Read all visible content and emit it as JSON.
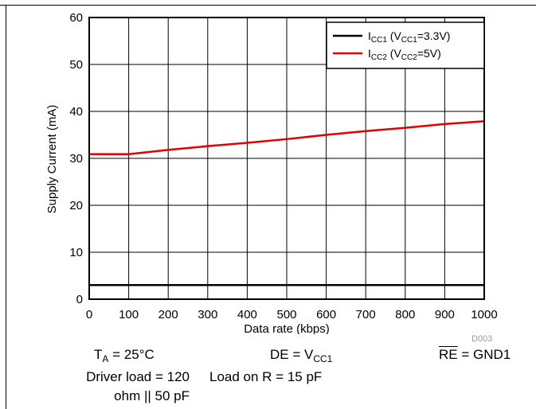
{
  "chart_data": {
    "type": "line",
    "title": "",
    "xlabel": "Data rate (kbps)",
    "ylabel": "Supply Current (mA)",
    "xlim": [
      0,
      1000
    ],
    "ylim": [
      0,
      60
    ],
    "xticks": [
      0,
      100,
      200,
      300,
      400,
      500,
      600,
      700,
      800,
      900,
      1000
    ],
    "yticks": [
      0,
      10,
      20,
      30,
      40,
      50,
      60
    ],
    "grid": true,
    "legend_position": "top-right",
    "series": [
      {
        "name": "ICC1 (VCC1=3.3V)",
        "color": "#000000",
        "x": [
          0,
          100,
          200,
          300,
          400,
          500,
          600,
          700,
          800,
          900,
          1000
        ],
        "y": [
          3,
          3,
          3,
          3,
          3,
          3,
          3,
          3,
          3,
          3,
          3
        ]
      },
      {
        "name": "ICC2 (VCC2=5V)",
        "color": "#e00000",
        "x": [
          0,
          100,
          200,
          300,
          400,
          500,
          600,
          700,
          800,
          900,
          1000
        ],
        "y": [
          30.9,
          30.9,
          31.8,
          32.6,
          33.3,
          34.1,
          35.0,
          35.8,
          36.5,
          37.3,
          37.9
        ]
      }
    ],
    "legend": [
      {
        "main": "I",
        "sub1": "CC1",
        "mid": " (V",
        "sub2": "CC1",
        "tail": "=3.3V)"
      },
      {
        "main": "I",
        "sub1": "CC2",
        "mid": " (V",
        "sub2": "CC2",
        "tail": "=5V)"
      }
    ],
    "figure_id": "D003"
  },
  "notes": {
    "ta_main": "T",
    "ta_sub": "A",
    "ta_tail": " = 25°C",
    "de_main": "DE = V",
    "de_sub": "CC1",
    "re_bar": "RE",
    "re_tail": " = GND1",
    "driver_load_line1": "Driver load = 120",
    "driver_load_line2": "ohm || 50 pF",
    "load_on_r": "Load on R = 15 pF"
  }
}
